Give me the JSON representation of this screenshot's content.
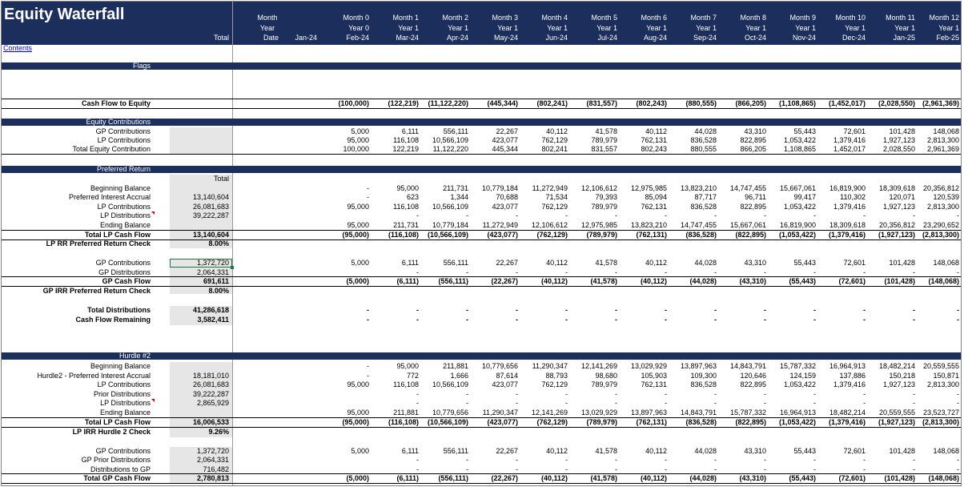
{
  "title": "Equity Waterfall",
  "contents_link": "Contents",
  "header": {
    "total_label": "Total",
    "row1": [
      "Month",
      "",
      "Month 0",
      "Month 1",
      "Month 2",
      "Month 3",
      "Month 4",
      "Month 5",
      "Month 6",
      "Month 7",
      "Month 8",
      "Month 9",
      "Month 10",
      "Month 11",
      "Month 12"
    ],
    "row2": [
      "Year",
      "",
      "Year 0",
      "Year 1",
      "Year 1",
      "Year 1",
      "Year 1",
      "Year 1",
      "Year 1",
      "Year 1",
      "Year 1",
      "Year 1",
      "Year 1",
      "Year 1",
      "Year 1"
    ],
    "row3": [
      "Date",
      "Jan-24",
      "Feb-24",
      "Mar-24",
      "Apr-24",
      "May-24",
      "Jun-24",
      "Jul-24",
      "Aug-24",
      "Sep-24",
      "Oct-24",
      "Nov-24",
      "Dec-24",
      "Jan-25",
      "Feb-25"
    ]
  },
  "sections": {
    "flags": "Flags",
    "equity": "Equity Contributions",
    "pref": "Preferred Return",
    "hurdle": "Hurdle #2"
  },
  "pref_total_header": "Total",
  "rows": [
    {
      "label": "Cash Flow to Equity",
      "total": "",
      "bold": true,
      "vals": [
        "(100,000)",
        "(122,219)",
        "(11,122,220)",
        "(445,344)",
        "(802,241)",
        "(831,557)",
        "(802,243)",
        "(880,555)",
        "(866,205)",
        "(1,108,865)",
        "(1,452,017)",
        "(2,028,550)",
        "(2,961,369)"
      ]
    },
    {
      "label": "GP Contributions",
      "total": "",
      "vals": [
        "5,000",
        "6,111",
        "556,111",
        "22,267",
        "40,112",
        "41,578",
        "40,112",
        "44,028",
        "43,310",
        "55,443",
        "72,601",
        "101,428",
        "148,068"
      ]
    },
    {
      "label": "LP Contributions",
      "total": "",
      "vals": [
        "95,000",
        "116,108",
        "10,566,109",
        "423,077",
        "762,129",
        "789,979",
        "762,131",
        "836,528",
        "822,895",
        "1,053,422",
        "1,379,416",
        "1,927,123",
        "2,813,300"
      ]
    },
    {
      "label": "Total Equity Contribution",
      "total": "",
      "vals": [
        "100,000",
        "122,219",
        "11,122,220",
        "445,344",
        "802,241",
        "831,557",
        "802,243",
        "880,555",
        "866,205",
        "1,108,865",
        "1,452,017",
        "2,028,550",
        "2,961,369"
      ]
    },
    {
      "label": "Beginning Balance",
      "total": "",
      "vals": [
        "-",
        "95,000",
        "211,731",
        "10,779,184",
        "11,272,949",
        "12,106,612",
        "12,975,985",
        "13,823,210",
        "14,747,455",
        "15,667,061",
        "16,819,900",
        "18,309,618",
        "20,356,812"
      ]
    },
    {
      "label": "Preferred Interest Accrual",
      "total": "13,140,604",
      "vals": [
        "-",
        "623",
        "1,344",
        "70,688",
        "71,534",
        "79,393",
        "85,094",
        "87,717",
        "96,711",
        "99,417",
        "110,302",
        "120,071",
        "120,539"
      ]
    },
    {
      "label": "LP Contributions",
      "total": "26,081,683",
      "vals": [
        "95,000",
        "116,108",
        "10,566,109",
        "423,077",
        "762,129",
        "789,979",
        "762,131",
        "836,528",
        "822,895",
        "1,053,422",
        "1,379,416",
        "1,927,123",
        "2,813,300"
      ]
    },
    {
      "label": "LP Distributions",
      "total": "39,222,287",
      "vals": [
        "",
        "-",
        "-",
        "-",
        "-",
        "-",
        "-",
        "-",
        "-",
        "-",
        "-",
        "-",
        "-"
      ]
    },
    {
      "label": "Ending Balance",
      "total": "",
      "vals": [
        "95,000",
        "211,731",
        "10,779,184",
        "11,272,949",
        "12,106,612",
        "12,975,985",
        "13,823,210",
        "14,747,455",
        "15,667,061",
        "16,819,900",
        "18,309,618",
        "20,356,812",
        "23,290,652"
      ]
    },
    {
      "label": "Total LP Cash Flow",
      "total": "13,140,604",
      "bold": true,
      "vals": [
        "(95,000)",
        "(116,108)",
        "(10,566,109)",
        "(423,077)",
        "(762,129)",
        "(789,979)",
        "(762,131)",
        "(836,528)",
        "(822,895)",
        "(1,053,422)",
        "(1,379,416)",
        "(1,927,123)",
        "(2,813,300)"
      ]
    },
    {
      "label": "LP RR Preferred Return Check",
      "total": "8.00%",
      "bold": true,
      "vals": []
    },
    {
      "label": "GP Contributions",
      "total": "1,372,720",
      "vals": [
        "5,000",
        "6,111",
        "556,111",
        "22,267",
        "40,112",
        "41,578",
        "40,112",
        "44,028",
        "43,310",
        "55,443",
        "72,601",
        "101,428",
        "148,068"
      ]
    },
    {
      "label": "GP Distributions",
      "total": "2,064,331",
      "vals": [
        "",
        "-",
        "-",
        "-",
        "-",
        "-",
        "-",
        "-",
        "-",
        "-",
        "-",
        "-",
        "-"
      ]
    },
    {
      "label": "GP Cash Flow",
      "total": "691,611",
      "bold": true,
      "vals": [
        "(5,000)",
        "(6,111)",
        "(556,111)",
        "(22,267)",
        "(40,112)",
        "(41,578)",
        "(40,112)",
        "(44,028)",
        "(43,310)",
        "(55,443)",
        "(72,601)",
        "(101,428)",
        "(148,068)"
      ]
    },
    {
      "label": "GP IRR Preferred Return Check",
      "total": "8.00%",
      "bold": true,
      "vals": []
    },
    {
      "label": "Total Distributions",
      "total": "41,286,618",
      "bold": true,
      "vals": [
        "-",
        "-",
        "-",
        "-",
        "-",
        "-",
        "-",
        "-",
        "-",
        "-",
        "-",
        "-",
        "-"
      ]
    },
    {
      "label": "Cash Flow Remaining",
      "total": "3,582,411",
      "bold": true,
      "vals": [
        "-",
        "-",
        "-",
        "-",
        "-",
        "-",
        "-",
        "-",
        "-",
        "-",
        "-",
        "-",
        "-"
      ]
    },
    {
      "label": "Beginning Balance",
      "total": "",
      "vals": [
        "-",
        "95,000",
        "211,881",
        "10,779,656",
        "11,290,347",
        "12,141,269",
        "13,029,929",
        "13,897,963",
        "14,843,791",
        "15,787,332",
        "16,964,913",
        "18,482,214",
        "20,559,555"
      ]
    },
    {
      "label": "Hurdle2 - Preferred Interest Accrual",
      "total": "18,181,010",
      "vals": [
        "-",
        "772",
        "1,666",
        "87,614",
        "88,793",
        "98,680",
        "105,903",
        "109,300",
        "120,646",
        "124,159",
        "137,886",
        "150,218",
        "150,871"
      ]
    },
    {
      "label": "LP Contributions",
      "total": "26,081,683",
      "vals": [
        "95,000",
        "116,108",
        "10,566,109",
        "423,077",
        "762,129",
        "789,979",
        "762,131",
        "836,528",
        "822,895",
        "1,053,422",
        "1,379,416",
        "1,927,123",
        "2,813,300"
      ]
    },
    {
      "label": "Prior Distributions",
      "total": "39,222,287",
      "vals": [
        "",
        "-",
        "-",
        "-",
        "-",
        "-",
        "-",
        "-",
        "-",
        "-",
        "-",
        "-",
        "-"
      ]
    },
    {
      "label": "LP Distributions",
      "total": "2,865,929",
      "vals": [
        "",
        "-",
        "-",
        "-",
        "-",
        "-",
        "-",
        "-",
        "-",
        "-",
        "-",
        "-",
        "-"
      ]
    },
    {
      "label": "Ending Balance",
      "total": "",
      "vals": [
        "95,000",
        "211,881",
        "10,779,656",
        "11,290,347",
        "12,141,269",
        "13,029,929",
        "13,897,963",
        "14,843,791",
        "15,787,332",
        "16,964,913",
        "18,482,214",
        "20,559,555",
        "23,523,727"
      ]
    },
    {
      "label": "Total LP Cash Flow",
      "total": "16,006,533",
      "bold": true,
      "vals": [
        "(95,000)",
        "(116,108)",
        "(10,566,109)",
        "(423,077)",
        "(762,129)",
        "(789,979)",
        "(762,131)",
        "(836,528)",
        "(822,895)",
        "(1,053,422)",
        "(1,379,416)",
        "(1,927,123)",
        "(2,813,300)"
      ]
    },
    {
      "label": "LP IRR Hurdle 2 Check",
      "total": "9.26%",
      "bold": true,
      "vals": []
    },
    {
      "label": "GP Contributions",
      "total": "1,372,720",
      "vals": [
        "5,000",
        "6,111",
        "556,111",
        "22,267",
        "40,112",
        "41,578",
        "40,112",
        "44,028",
        "43,310",
        "55,443",
        "72,601",
        "101,428",
        "148,068"
      ]
    },
    {
      "label": "GP Prior Distributions",
      "total": "2,064,331",
      "vals": [
        "",
        "-",
        "-",
        "-",
        "-",
        "-",
        "-",
        "-",
        "-",
        "-",
        "-",
        "-",
        "-"
      ]
    },
    {
      "label": "Distributions to GP",
      "total": "716,482",
      "vals": [
        "",
        "-",
        "-",
        "-",
        "-",
        "-",
        "-",
        "-",
        "-",
        "-",
        "-",
        "-",
        "-"
      ]
    },
    {
      "label": "Total GP Cash Flow",
      "total": "2,780,813",
      "bold": true,
      "vals": [
        "(5,000)",
        "(6,111)",
        "(556,111)",
        "(22,267)",
        "(40,112)",
        "(41,578)",
        "(40,112)",
        "(44,028)",
        "(43,310)",
        "(55,443)",
        "(72,601)",
        "(101,428)",
        "(148,068)"
      ]
    }
  ]
}
